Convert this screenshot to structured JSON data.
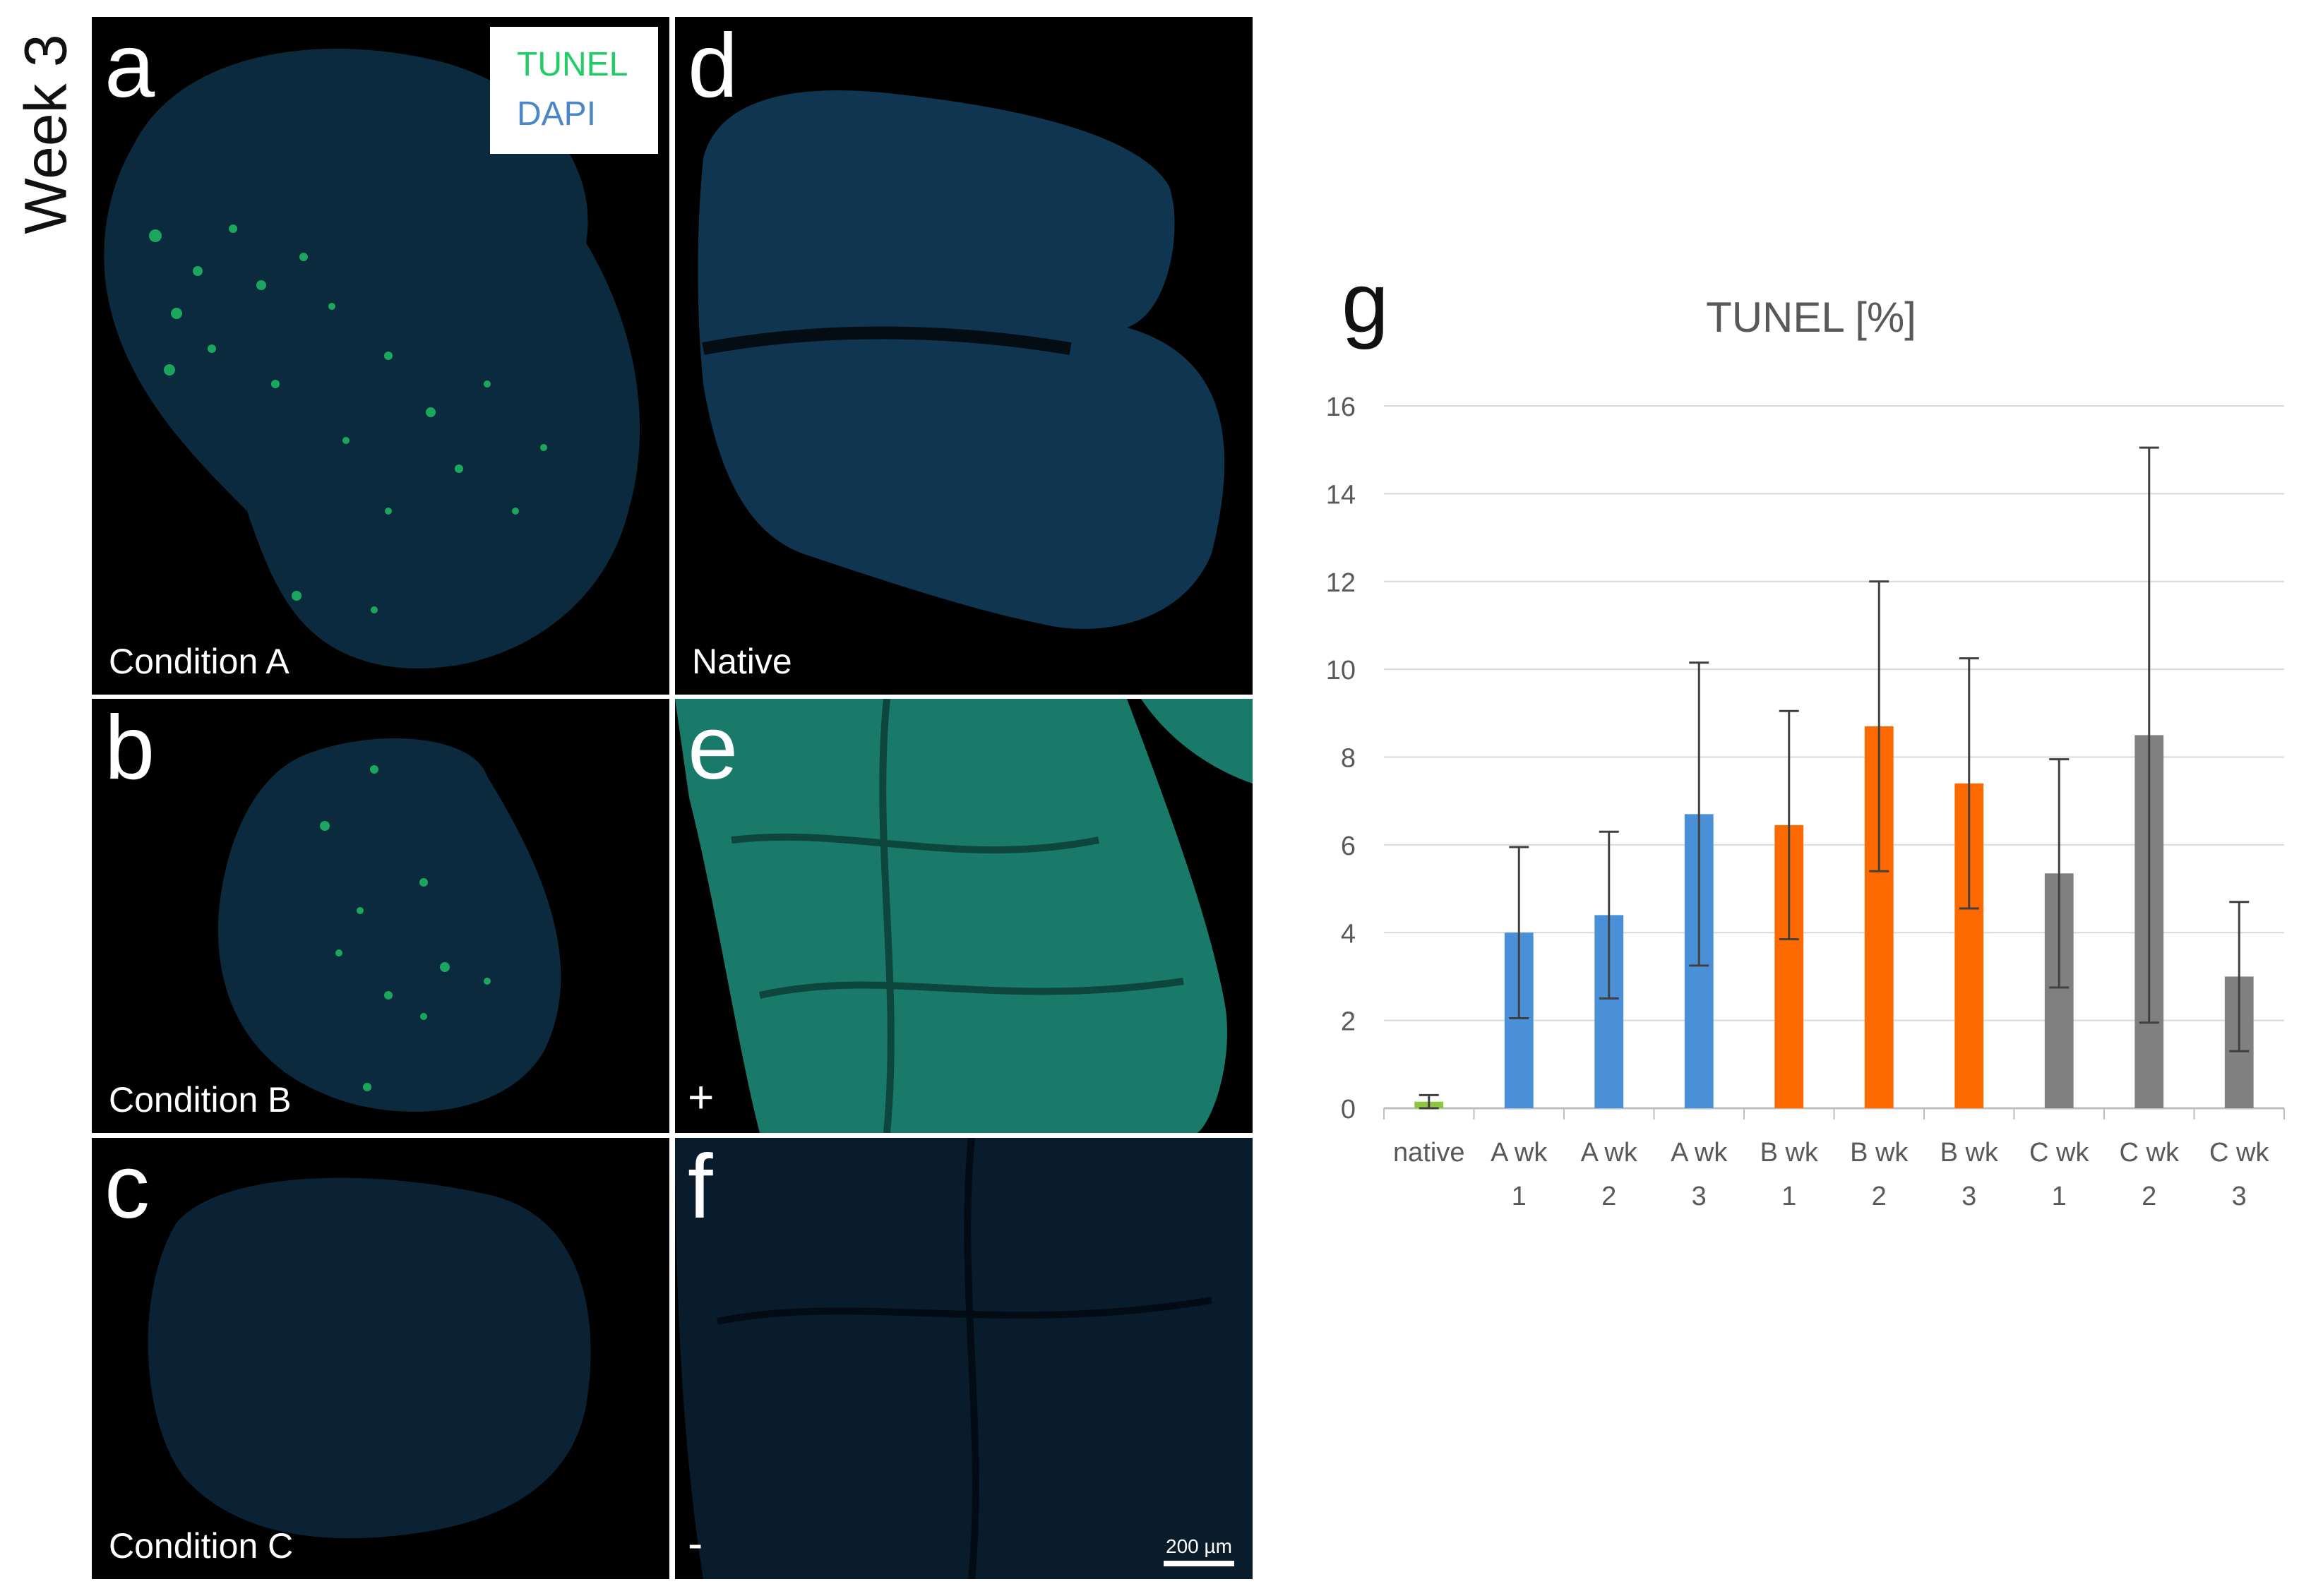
{
  "figure": {
    "week_label": "Week 3",
    "legend": {
      "tunel": "TUNEL",
      "dapi": "DAPI"
    },
    "panels": [
      {
        "letter": "a",
        "caption": "Condition A"
      },
      {
        "letter": "b",
        "caption": "Condition B"
      },
      {
        "letter": "c",
        "caption": "Condition C"
      },
      {
        "letter": "d",
        "caption": "Native"
      },
      {
        "letter": "e",
        "caption": "+"
      },
      {
        "letter": "f",
        "caption": "-"
      }
    ],
    "scale_bar": "200 µm",
    "chart_letter": "g"
  },
  "colors": {
    "native": "#8dc63f",
    "A": "#4a90d9",
    "B": "#ff6a00",
    "C": "#808080",
    "grid": "#d9d9d9",
    "text": "#595959"
  },
  "chart_data": {
    "type": "bar",
    "title": "TUNEL [%]",
    "categories": [
      [
        "native"
      ],
      [
        "A wk",
        "1"
      ],
      [
        "A wk",
        "2"
      ],
      [
        "A wk",
        "3"
      ],
      [
        "B wk",
        "1"
      ],
      [
        "B wk",
        "2"
      ],
      [
        "B wk",
        "3"
      ],
      [
        "C wk",
        "1"
      ],
      [
        "C wk",
        "2"
      ],
      [
        "C wk",
        "3"
      ]
    ],
    "groups": [
      "native",
      "A",
      "A",
      "A",
      "B",
      "B",
      "B",
      "C",
      "C",
      "C"
    ],
    "values": [
      0.15,
      4.0,
      4.4,
      6.7,
      6.45,
      8.7,
      7.4,
      5.35,
      8.5,
      3.0
    ],
    "errors": [
      0.15,
      1.95,
      1.9,
      3.45,
      2.6,
      3.3,
      2.85,
      2.6,
      6.55,
      1.7
    ],
    "ylim": [
      0,
      16
    ],
    "yticks": [
      0,
      2,
      4,
      6,
      8,
      10,
      12,
      14,
      16
    ],
    "grid": true,
    "xlabel": "",
    "ylabel": ""
  }
}
